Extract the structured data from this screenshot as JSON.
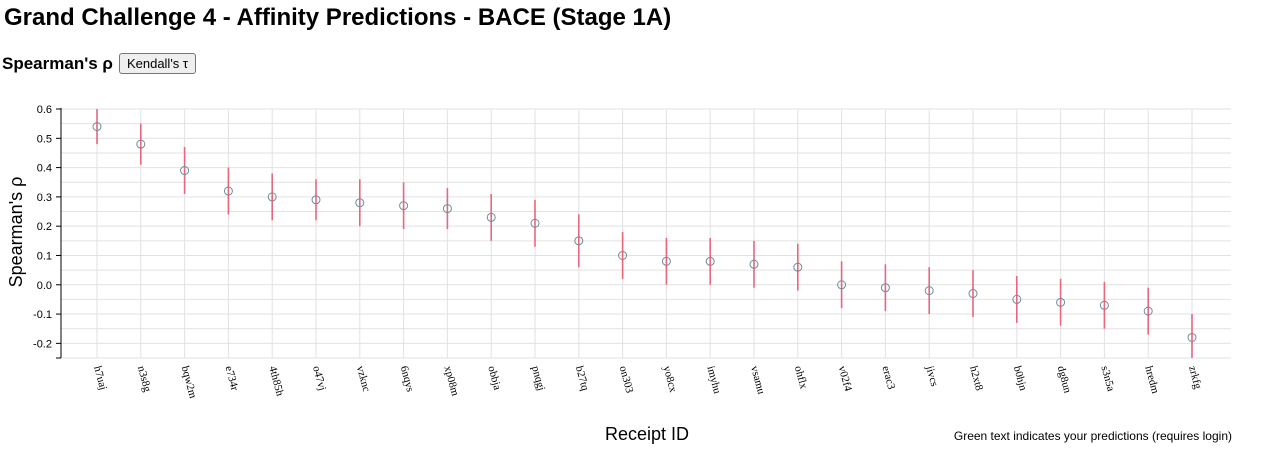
{
  "page": {
    "title": "Grand Challenge 4 - Affinity Predictions - BACE (Stage 1A)",
    "metric_label": "Spearman's ρ",
    "toggle_label": "Kendall's τ",
    "footnote": "Green text indicates your predictions (requires login)"
  },
  "colors": {
    "error_bar": "#e8677d",
    "point": "#6f8b9a",
    "grid": "#e2e2e2"
  },
  "chart_data": {
    "type": "scatter",
    "xlabel": "Receipt ID",
    "ylabel": "Spearman's ρ",
    "ylim": [
      -0.25,
      0.6
    ],
    "yticks": [
      -0.2,
      -0.1,
      0.0,
      0.1,
      0.2,
      0.3,
      0.4,
      0.5,
      0.6
    ],
    "ytick_labels": [
      "-0.2",
      "-0.1",
      "0.0",
      "0.1",
      "0.2",
      "0.3",
      "0.4",
      "0.5",
      "0.6"
    ],
    "grid": true,
    "categories": [
      "h7uaj",
      "n3s8g",
      "bqw2m",
      "e734r",
      "4th85h",
      "o47vj",
      "vzknc",
      "6nqys",
      "xp08m",
      "obbja",
      "pnqgj",
      "b27tq",
      "on303",
      "yo8cx",
      "imyhu",
      "vsamu",
      "ohflx",
      "v02f4",
      "erac3",
      "jivcs",
      "h2xt8",
      "b0hjn",
      "dg8un",
      "s3n5a",
      "hredm",
      "zrkfg"
    ],
    "values": [
      0.54,
      0.48,
      0.39,
      0.32,
      0.3,
      0.29,
      0.28,
      0.27,
      0.26,
      0.23,
      0.21,
      0.15,
      0.1,
      0.08,
      0.08,
      0.07,
      0.06,
      0.0,
      -0.01,
      -0.02,
      -0.03,
      -0.05,
      -0.06,
      -0.07,
      -0.09,
      -0.18
    ],
    "err_low": [
      0.48,
      0.41,
      0.31,
      0.24,
      0.22,
      0.22,
      0.2,
      0.19,
      0.19,
      0.15,
      0.13,
      0.06,
      0.02,
      0.0,
      0.0,
      -0.01,
      -0.02,
      -0.08,
      -0.09,
      -0.1,
      -0.11,
      -0.13,
      -0.14,
      -0.15,
      -0.17,
      -0.26
    ],
    "err_high": [
      0.6,
      0.55,
      0.47,
      0.4,
      0.38,
      0.36,
      0.36,
      0.35,
      0.33,
      0.31,
      0.29,
      0.24,
      0.18,
      0.16,
      0.16,
      0.15,
      0.14,
      0.08,
      0.07,
      0.06,
      0.05,
      0.03,
      0.02,
      0.01,
      -0.01,
      -0.1
    ]
  }
}
